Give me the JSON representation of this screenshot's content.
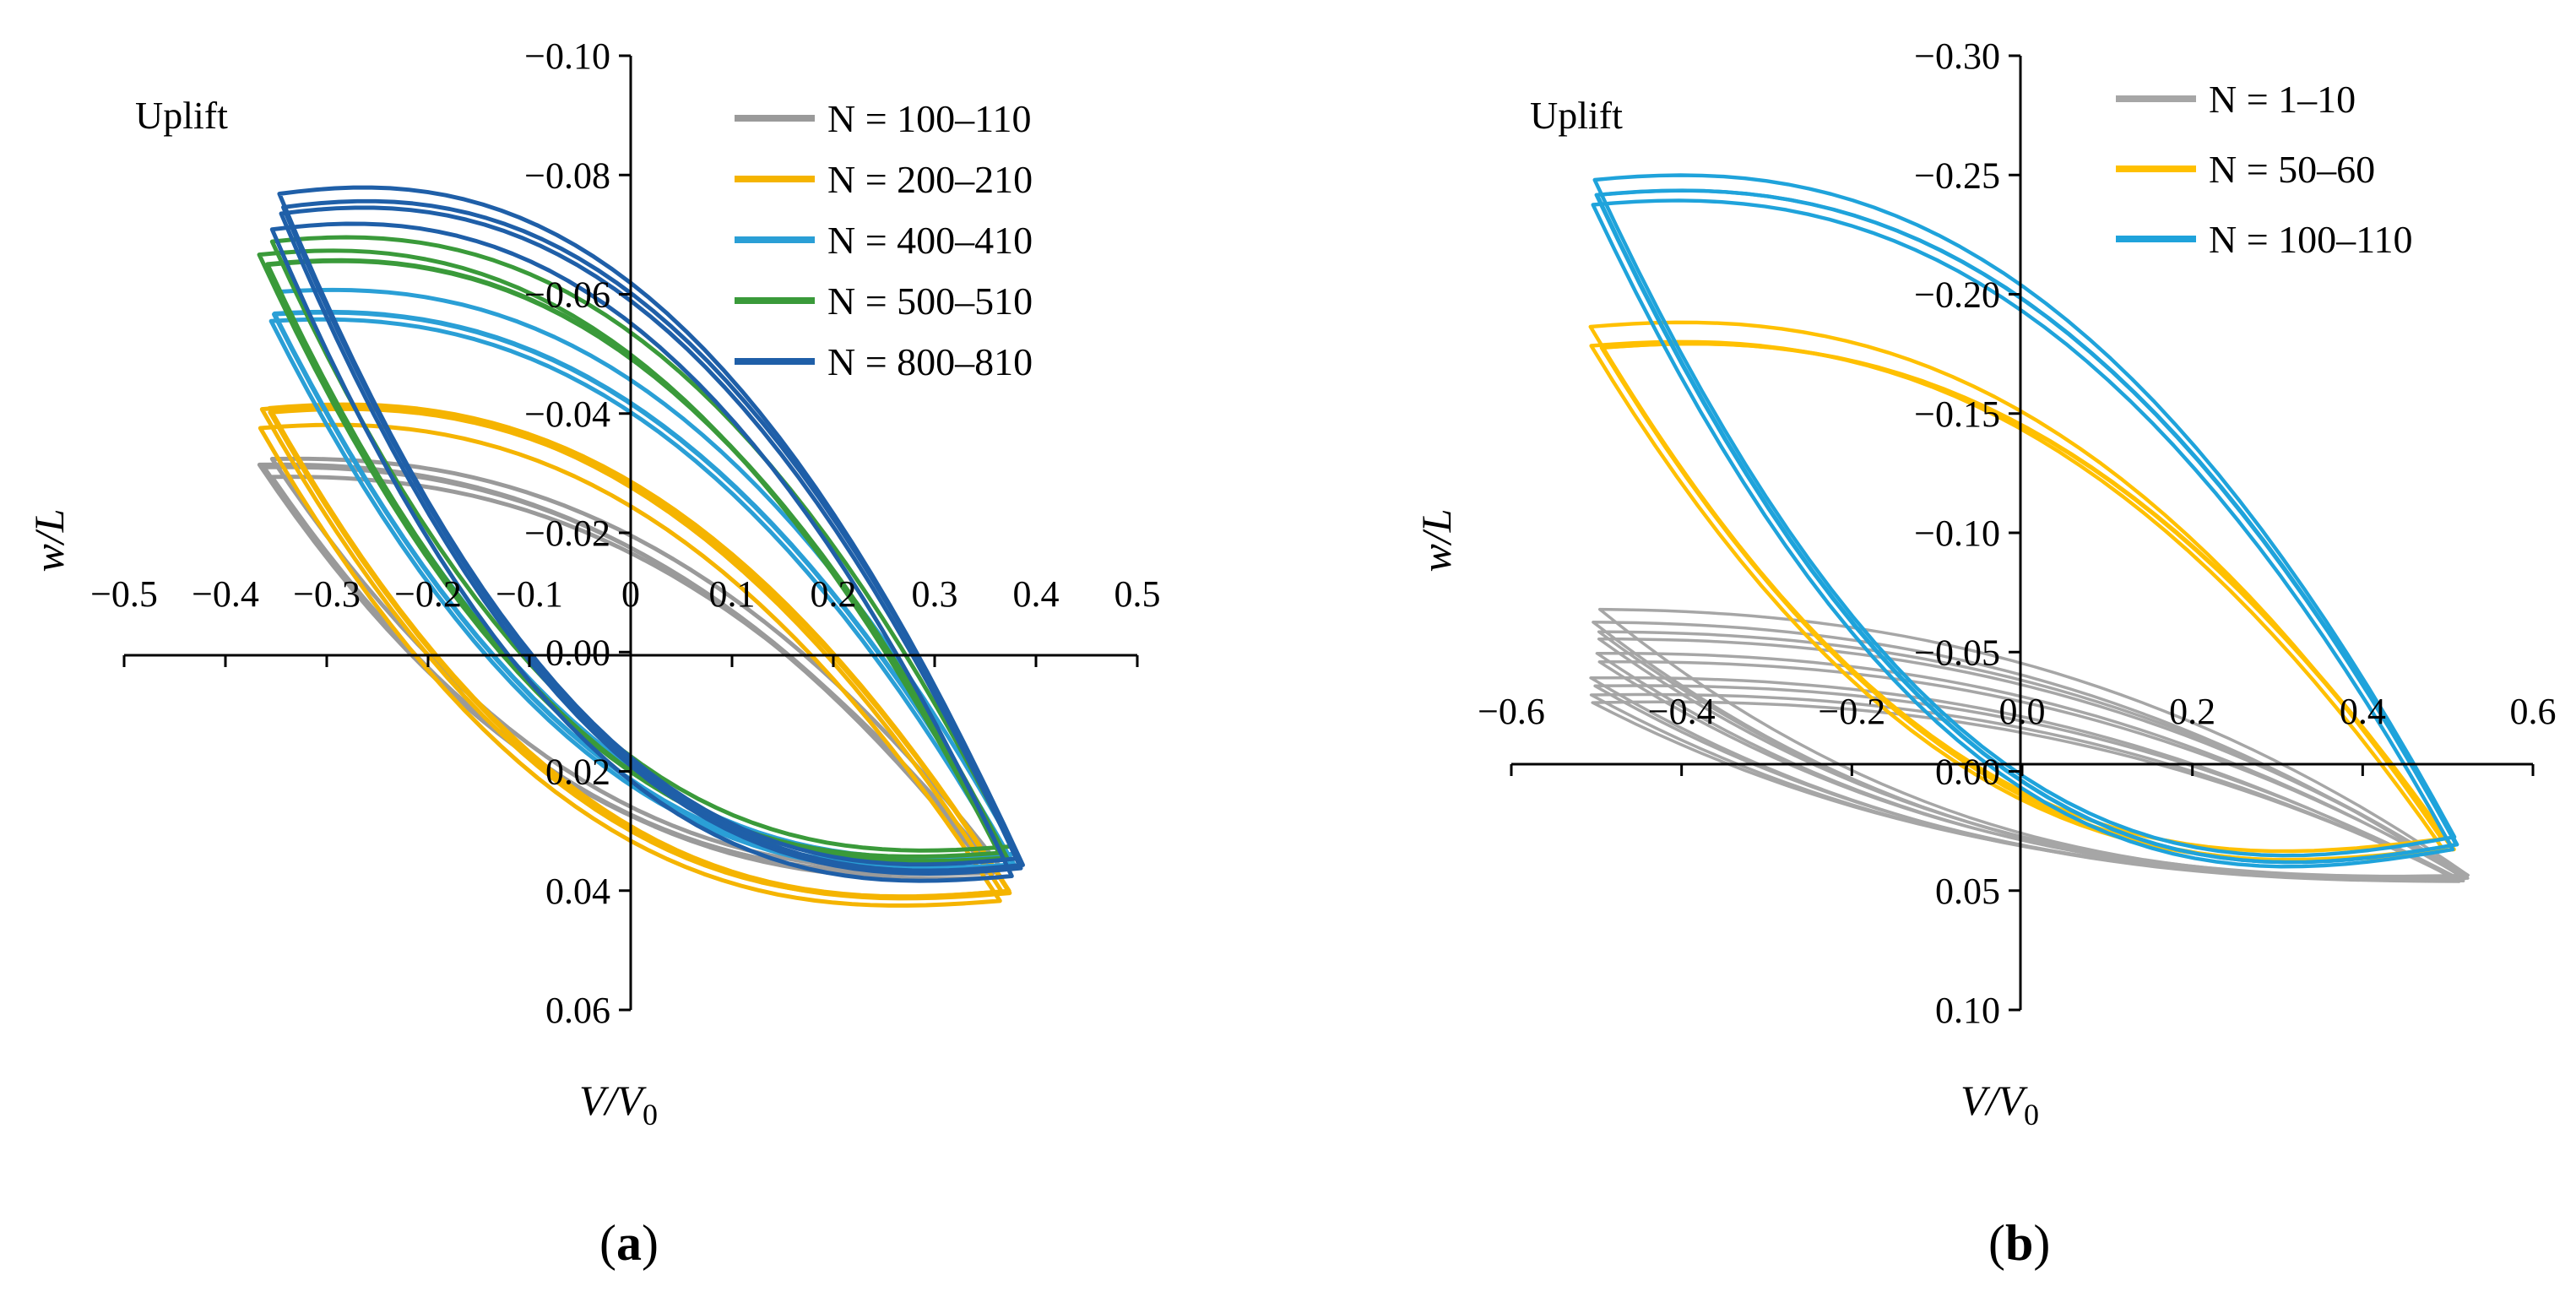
{
  "chart_data": [
    {
      "panel_label": "(a)",
      "type": "line",
      "annotation": "Uplift",
      "xlabel": "V/V0",
      "ylabel": "w/L",
      "xlim": [
        -0.5,
        0.5
      ],
      "ylim": [
        0.06,
        -0.1
      ],
      "y_inverted": true,
      "x_ticks": [
        "-0.5",
        "-0.4",
        "-0.3",
        "-0.2",
        "-0.1",
        "0",
        "0.1",
        "0.2",
        "0.3",
        "0.4",
        "0.5"
      ],
      "y_ticks": [
        "-0.10",
        "-0.08",
        "-0.06",
        "-0.04",
        "-0.02",
        "0.00",
        "0.02",
        "0.04",
        "0.06"
      ],
      "legend_position": "top-right",
      "series": [
        {
          "name": "N = 100–110",
          "color": "#9a9a9a",
          "vmin": -0.36,
          "vmax": 0.36,
          "upper_peak": -0.031,
          "lower_peak": 0.037,
          "upper_mid": -0.018,
          "lower_mid": 0.028
        },
        {
          "name": "N = 200–210",
          "color": "#f5b400",
          "vmin": -0.36,
          "vmax": 0.37,
          "upper_peak": -0.039,
          "lower_peak": 0.041,
          "upper_mid": -0.028,
          "lower_mid": 0.033
        },
        {
          "name": "N = 400–410",
          "color": "#2a9fd6",
          "vmin": -0.35,
          "vmax": 0.38,
          "upper_peak": -0.058,
          "lower_peak": 0.035,
          "upper_mid": -0.043,
          "lower_mid": 0.024
        },
        {
          "name": "N = 500–510",
          "color": "#3a9a3a",
          "vmin": -0.36,
          "vmax": 0.37,
          "upper_peak": -0.066,
          "lower_peak": 0.034,
          "upper_mid": -0.052,
          "lower_mid": 0.022
        },
        {
          "name": "N = 800–810",
          "color": "#1f5fa8",
          "vmin": -0.35,
          "vmax": 0.38,
          "upper_peak": -0.074,
          "lower_peak": 0.036,
          "upper_mid": -0.06,
          "lower_mid": 0.024
        }
      ]
    },
    {
      "panel_label": "(b)",
      "type": "line",
      "annotation": "Uplift",
      "xlabel": "V/V0",
      "ylabel": "w/L",
      "xlim": [
        -0.6,
        0.6
      ],
      "ylim": [
        0.1,
        -0.3
      ],
      "y_inverted": true,
      "x_ticks": [
        "-0.6",
        "-0.4",
        "-0.2",
        "0.0",
        "0.2",
        "0.4",
        "0.6"
      ],
      "y_ticks": [
        "-0.30",
        "-0.25",
        "-0.20",
        "-0.15",
        "-0.10",
        "-0.05",
        "0.00",
        "0.05",
        "0.10"
      ],
      "legend_position": "top-right",
      "series": [
        {
          "name": "N = 1–10",
          "color": "#a6a6a6",
          "vmin": -0.5,
          "vmax": 0.52,
          "upper_peak": -0.065,
          "lower_peak": 0.045,
          "upper_mid": -0.04,
          "lower_mid": 0.03
        },
        {
          "name": "N = 50–60",
          "color": "#ffc000",
          "vmin": -0.5,
          "vmax": 0.5,
          "upper_peak": -0.183,
          "lower_peak": 0.03,
          "upper_mid": -0.155,
          "lower_mid": 0.018
        },
        {
          "name": "N = 100–110",
          "color": "#1fa3db",
          "vmin": -0.5,
          "vmax": 0.51,
          "upper_peak": -0.243,
          "lower_peak": 0.03,
          "upper_mid": -0.205,
          "lower_mid": 0.018
        }
      ]
    }
  ]
}
